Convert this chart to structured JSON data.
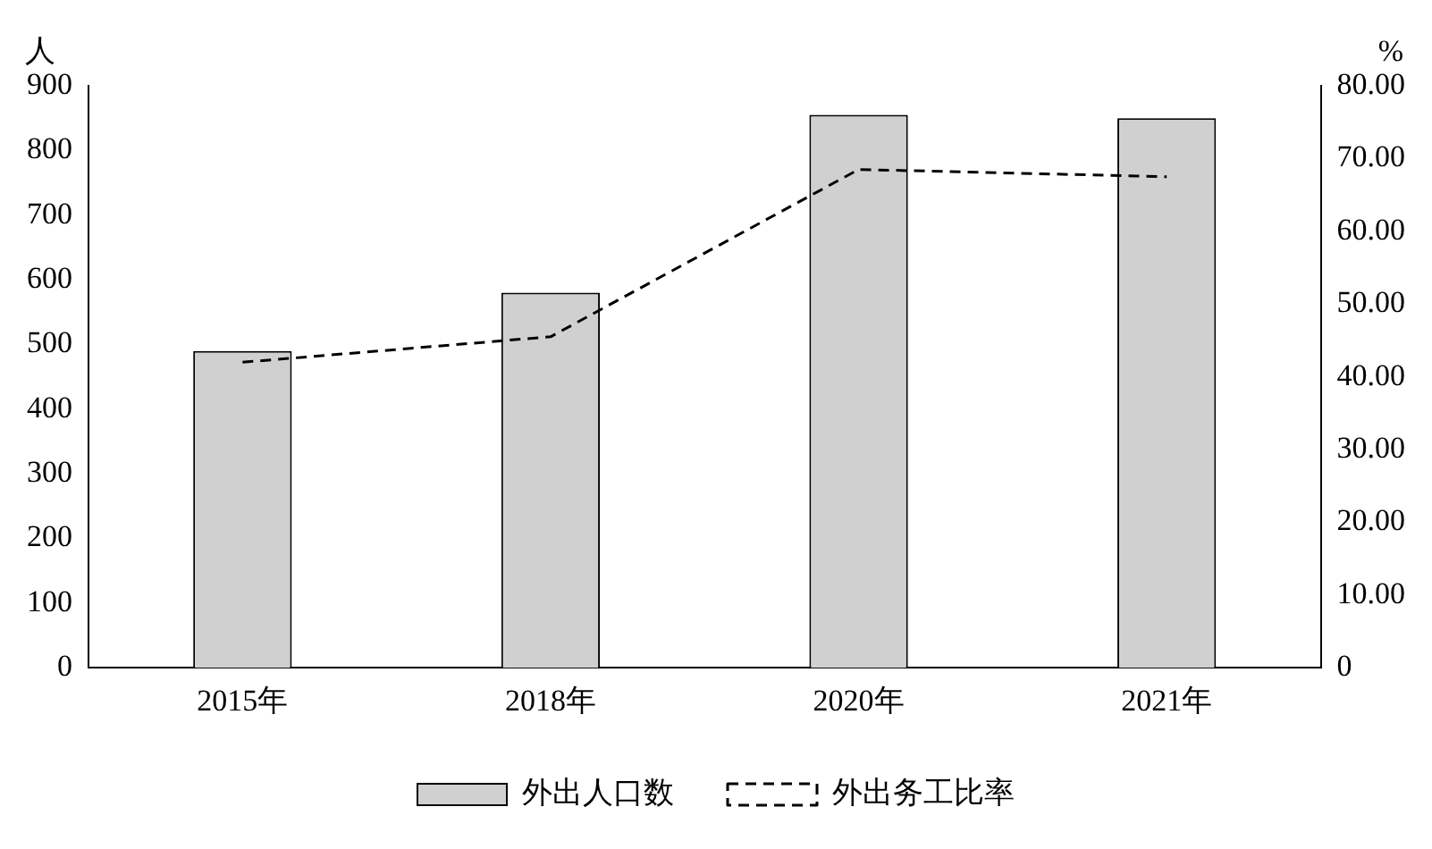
{
  "chart_data": {
    "type": "bar",
    "categories": [
      "2015年",
      "2018年",
      "2020年",
      "2021年"
    ],
    "ylabel": "人",
    "y2label": "%",
    "series": [
      {
        "name": "外出人口数",
        "color": "#d0d0d0",
        "values": [
          490,
          580,
          855,
          850
        ]
      },
      {
        "name": "外出务工比率",
        "type": "line",
        "color": "#000000",
        "axis": "y2",
        "line_style": "dashed",
        "marker": "none",
        "values": [
          42,
          45.5,
          68.5,
          67.5
        ]
      }
    ],
    "ylim": [
      0,
      900
    ],
    "yticks": [
      0,
      100,
      200,
      300,
      400,
      500,
      600,
      700,
      800,
      900
    ],
    "y2lim": [
      0,
      80
    ],
    "y2ticks": [
      0,
      {
        "value": 10,
        "label": "10.00"
      },
      {
        "value": 20,
        "label": "20.00"
      },
      {
        "value": 30,
        "label": "30.00"
      },
      {
        "value": 40,
        "label": "40.00"
      },
      {
        "value": 50,
        "label": "50.00"
      },
      {
        "value": 60,
        "label": "60.00"
      },
      {
        "value": 70,
        "label": "70.00"
      },
      {
        "value": 80,
        "label": "80.00"
      }
    ],
    "grid": false,
    "legend": "bottom"
  }
}
